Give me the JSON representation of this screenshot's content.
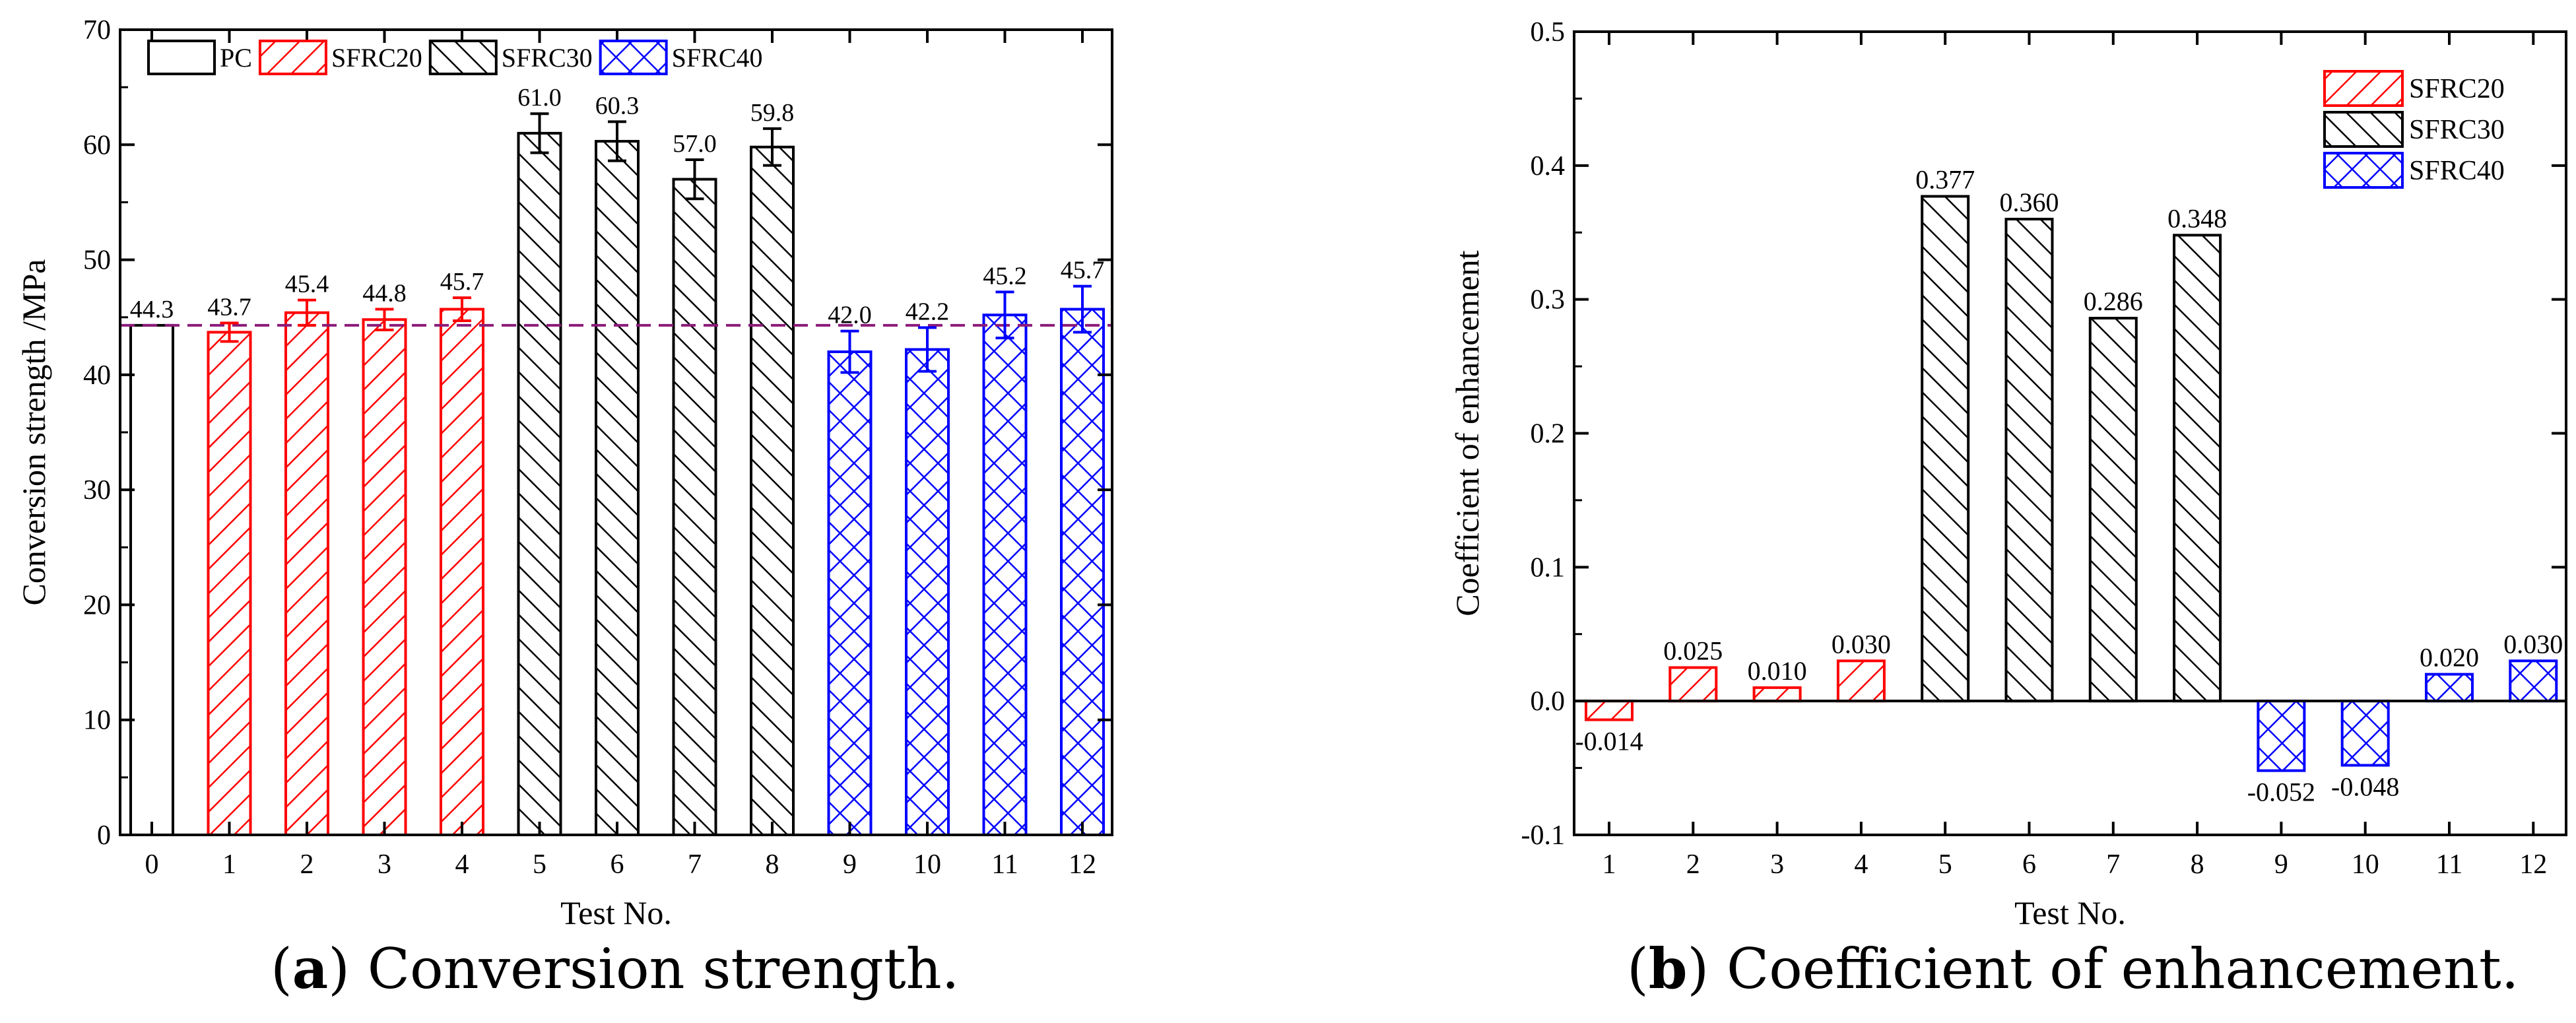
{
  "colors": {
    "pc": "#000000",
    "sfrc20": "#ff0000",
    "sfrc30": "#000000",
    "sfrc40": "#0000ff",
    "reference_line": "#8b1a7a"
  },
  "captions": {
    "a": {
      "letter": "a",
      "text": "Conversion strength."
    },
    "b": {
      "letter": "b",
      "text": "Coefficient of enhancement."
    }
  },
  "chart_data": [
    {
      "type": "bar",
      "title": "Conversion strength",
      "xlabel": "Test No.",
      "ylabel": "Conversion strength /MPa",
      "ylim": [
        0,
        70
      ],
      "yticks": [
        0,
        10,
        20,
        30,
        40,
        50,
        60,
        70
      ],
      "categories": [
        "0",
        "1",
        "2",
        "3",
        "4",
        "5",
        "6",
        "7",
        "8",
        "9",
        "10",
        "11",
        "12"
      ],
      "legend": {
        "position": "top-left",
        "orientation": "horizontal",
        "entries": [
          "PC",
          "SFRC20",
          "SFRC30",
          "SFRC40"
        ]
      },
      "reference_line": {
        "value": 44.3,
        "style": "dashed"
      },
      "bars": [
        {
          "test": 0,
          "value": 44.3,
          "label": "44.3",
          "error": 0,
          "group": "PC"
        },
        {
          "test": 1,
          "value": 43.7,
          "label": "43.7",
          "error": 0.8,
          "group": "SFRC20"
        },
        {
          "test": 2,
          "value": 45.4,
          "label": "45.4",
          "error": 1.1,
          "group": "SFRC20"
        },
        {
          "test": 3,
          "value": 44.8,
          "label": "44.8",
          "error": 0.9,
          "group": "SFRC20"
        },
        {
          "test": 4,
          "value": 45.7,
          "label": "45.7",
          "error": 1.0,
          "group": "SFRC20"
        },
        {
          "test": 5,
          "value": 61.0,
          "label": "61.0",
          "error": 1.7,
          "group": "SFRC30"
        },
        {
          "test": 6,
          "value": 60.3,
          "label": "60.3",
          "error": 1.7,
          "group": "SFRC30"
        },
        {
          "test": 7,
          "value": 57.0,
          "label": "57.0",
          "error": 1.7,
          "group": "SFRC30"
        },
        {
          "test": 8,
          "value": 59.8,
          "label": "59.8",
          "error": 1.6,
          "group": "SFRC30"
        },
        {
          "test": 9,
          "value": 42.0,
          "label": "42.0",
          "error": 1.8,
          "group": "SFRC40"
        },
        {
          "test": 10,
          "value": 42.2,
          "label": "42.2",
          "error": 1.9,
          "group": "SFRC40"
        },
        {
          "test": 11,
          "value": 45.2,
          "label": "45.2",
          "error": 2.0,
          "group": "SFRC40"
        },
        {
          "test": 12,
          "value": 45.7,
          "label": "45.7",
          "error": 2.0,
          "group": "SFRC40"
        }
      ]
    },
    {
      "type": "bar",
      "title": "Coefficient of enhancement",
      "xlabel": "Test No.",
      "ylabel": "Coefficient of enhancement",
      "ylim": [
        -0.1,
        0.5
      ],
      "yticks": [
        -0.1,
        0.0,
        0.1,
        0.2,
        0.3,
        0.4,
        0.5
      ],
      "yticklabels": [
        "-0.1",
        "0.0",
        "0.1",
        "0.2",
        "0.3",
        "0.4",
        "0.5"
      ],
      "categories": [
        "1",
        "2",
        "3",
        "4",
        "5",
        "6",
        "7",
        "8",
        "9",
        "10",
        "11",
        "12"
      ],
      "legend": {
        "position": "top-right",
        "orientation": "vertical",
        "entries": [
          "SFRC20",
          "SFRC30",
          "SFRC40"
        ]
      },
      "zero_line": true,
      "bars": [
        {
          "test": 1,
          "value": -0.014,
          "label": "-0.014",
          "group": "SFRC20"
        },
        {
          "test": 2,
          "value": 0.025,
          "label": "0.025",
          "group": "SFRC20"
        },
        {
          "test": 3,
          "value": 0.01,
          "label": "0.010",
          "group": "SFRC20"
        },
        {
          "test": 4,
          "value": 0.03,
          "label": "0.030",
          "group": "SFRC20"
        },
        {
          "test": 5,
          "value": 0.377,
          "label": "0.377",
          "group": "SFRC30"
        },
        {
          "test": 6,
          "value": 0.36,
          "label": "0.360",
          "group": "SFRC30"
        },
        {
          "test": 7,
          "value": 0.286,
          "label": "0.286",
          "group": "SFRC30"
        },
        {
          "test": 8,
          "value": 0.348,
          "label": "0.348",
          "group": "SFRC30"
        },
        {
          "test": 9,
          "value": -0.052,
          "label": "-0.052",
          "group": "SFRC40"
        },
        {
          "test": 10,
          "value": -0.048,
          "label": "-0.048",
          "group": "SFRC40"
        },
        {
          "test": 11,
          "value": 0.02,
          "label": "0.020",
          "group": "SFRC40"
        },
        {
          "test": 12,
          "value": 0.03,
          "label": "0.030",
          "group": "SFRC40"
        }
      ]
    }
  ]
}
